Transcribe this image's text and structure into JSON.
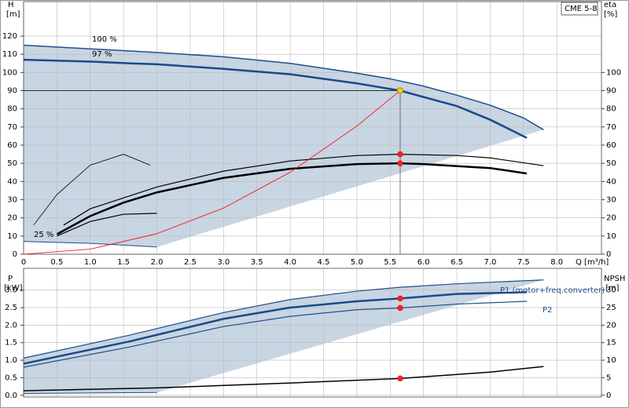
{
  "chart_data": [
    {
      "type": "line",
      "title": "CME 5-8",
      "ylabel": "H",
      "yunit": "[m]",
      "y2label": "eta",
      "y2unit": "[%]",
      "xlabel": "Q [m³/h]",
      "xlim": [
        0,
        8.67
      ],
      "xticks": [
        0,
        0.5,
        {
          "value": 1,
          "label": "1.0"
        },
        1.5,
        {
          "value": 2,
          "label": "2.0"
        },
        2.5,
        {
          "value": 3,
          "label": "3.0"
        },
        3.5,
        {
          "value": 4,
          "label": "4.0"
        },
        4.5,
        {
          "value": 5,
          "label": "5.0"
        },
        5.5,
        {
          "value": 6,
          "label": "6.0"
        },
        6.5,
        {
          "value": 7,
          "label": "7.0"
        },
        7.5,
        {
          "value": 8,
          "label": "8.0"
        }
      ],
      "ylim": [
        0,
        139
      ],
      "yticks": [
        0,
        10,
        20,
        30,
        40,
        50,
        60,
        70,
        80,
        90,
        100,
        110,
        120
      ],
      "y2lim": [
        0,
        139
      ],
      "y2ticks": [
        0,
        10,
        20,
        30,
        40,
        50,
        60,
        70,
        80,
        90,
        100
      ],
      "grid": true,
      "area_color": "#c8d5e2",
      "duty_x": 5.65,
      "duty_y": 90,
      "annotations": [
        "100 %",
        "97 %",
        "25 %"
      ],
      "series": [
        {
          "color": "#1f4e8c",
          "width": 1.5,
          "x": [
            0,
            1,
            2,
            3,
            4,
            5,
            5.5,
            6,
            6.5,
            7,
            7.5,
            7.8
          ],
          "values": [
            115,
            113,
            111,
            108.6,
            105,
            99.6,
            96.5,
            92.5,
            87.5,
            82,
            75,
            68.5
          ]
        },
        {
          "color": "#1a4a8a",
          "width": 2.5,
          "x": [
            0,
            1,
            1.6,
            2,
            3,
            4,
            5,
            5.65,
            6,
            6.5,
            7,
            7.55
          ],
          "values": [
            107,
            106,
            105,
            104.5,
            102,
            99,
            94,
            90,
            86.5,
            81.5,
            74,
            64
          ]
        },
        {
          "color": "#1f4e8c",
          "width": 1,
          "x": [
            0,
            1,
            2
          ],
          "values": [
            7,
            6,
            4
          ]
        },
        {
          "color": "#000000",
          "width": 2.5,
          "axis": "y2",
          "duty": true,
          "x": [
            0.5,
            1,
            1.5,
            2,
            3,
            4,
            5,
            5.65,
            6,
            7,
            7.55
          ],
          "values": [
            11,
            21,
            28.4,
            34,
            42,
            47,
            49.6,
            50,
            49.6,
            47.4,
            44.4
          ]
        },
        {
          "color": "#000000",
          "width": 1.2,
          "axis": "y2",
          "duty": true,
          "x": [
            0.6,
            1,
            2,
            3,
            4,
            5,
            5.65,
            6.5,
            7,
            7.8
          ],
          "values": [
            16,
            25,
            37,
            45.7,
            51.3,
            54.3,
            55,
            54.3,
            53,
            48.7
          ]
        },
        {
          "color": "#000000",
          "width": 0.8,
          "axis": "y2",
          "x": [
            0.15,
            0.5,
            1,
            1.5,
            1.9
          ],
          "values": [
            16,
            32.8,
            49,
            55,
            49
          ]
        },
        {
          "color": "#000000",
          "width": 1.2,
          "axis": "y2",
          "x": [
            0.5,
            1,
            1.5,
            2
          ],
          "values": [
            10,
            18,
            22,
            22.5
          ]
        },
        {
          "color": "#ff0000",
          "width": 0.8,
          "x": [
            0,
            1,
            2,
            3,
            4,
            5,
            5.65
          ],
          "values": [
            0,
            2.8,
            11.3,
            25.4,
            45.1,
            70.5,
            90
          ]
        }
      ]
    },
    {
      "type": "line",
      "ylabel": "P",
      "yunit": "[kW]",
      "y2label": "NPSH",
      "y2unit": "[m]",
      "xlim": [
        0,
        8.67
      ],
      "ylim": [
        -0.05,
        3.62
      ],
      "yticks": [
        {
          "value": 0,
          "label": "0.0"
        },
        0.5,
        {
          "value": 1,
          "label": "1.0"
        },
        1.5,
        {
          "value": 2,
          "label": "2.0"
        },
        2.5,
        {
          "value": 3,
          "label": "3.0"
        }
      ],
      "y2lim": [
        -0.5,
        36.2
      ],
      "y2ticks": [
        0,
        5,
        10,
        15,
        20,
        25,
        30
      ],
      "grid": true,
      "area_color": "#c8d5e2",
      "duty_x": 5.65,
      "annotations": [
        "P1 (motor+freq.converter)",
        "P2"
      ],
      "series": [
        {
          "color": "#1f4e8c",
          "width": 1.2,
          "x": [
            0,
            1.6,
            3,
            4,
            5,
            5.65,
            6.5,
            7.8
          ],
          "values": [
            1.06,
            1.72,
            2.36,
            2.73,
            2.97,
            3.08,
            3.18,
            3.29
          ]
        },
        {
          "color": "#1a4a8a",
          "width": 2.5,
          "duty": true,
          "x": [
            0,
            1.6,
            3,
            4,
            5,
            5.65,
            6.5,
            7.55
          ],
          "values": [
            0.9,
            1.54,
            2.18,
            2.5,
            2.68,
            2.76,
            2.89,
            2.94
          ]
        },
        {
          "color": "#1f4e8c",
          "width": 1.2,
          "duty": true,
          "x": [
            0,
            1.6,
            3,
            4,
            5,
            5.65,
            6.5,
            7.55
          ],
          "values": [
            0.8,
            1.38,
            1.96,
            2.25,
            2.44,
            2.49,
            2.6,
            2.68
          ]
        },
        {
          "color": "#1f4e8c",
          "width": 1,
          "x": [
            0,
            2
          ],
          "values": [
            0.05,
            0.08
          ]
        },
        {
          "color": "#000000",
          "width": 1.5,
          "axis": "y2",
          "duty": true,
          "x": [
            0,
            2,
            4,
            5.65,
            7,
            7.8
          ],
          "values": [
            1.3,
            2.1,
            3.5,
            4.8,
            6.6,
            8.2
          ]
        }
      ]
    }
  ]
}
